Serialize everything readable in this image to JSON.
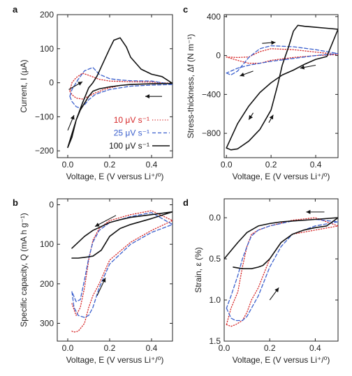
{
  "colors": {
    "s10": "#d62728",
    "s25": "#3a5fcd",
    "s100": "#111111"
  },
  "legend": [
    {
      "label": "10 μV s⁻¹",
      "color": "#d62728",
      "style": "dotted"
    },
    {
      "label": "25 μV s⁻¹",
      "color": "#3a5fcd",
      "style": "dashed"
    },
    {
      "label": "100 μV s⁻¹",
      "color": "#111111",
      "style": "solid"
    }
  ],
  "chart_data": [
    {
      "id": "a",
      "panel_label": "a",
      "type": "line",
      "xlabel": "Voltage, E (V versus Li⁺/⁰)",
      "ylabel": "Current, I (μA)",
      "xlim": [
        -0.05,
        0.5
      ],
      "ylim": [
        -220,
        200
      ],
      "xticks": [
        0.0,
        0.2,
        0.4
      ],
      "xtick_labels": [
        "0.0",
        "0.2",
        "0.4"
      ],
      "yticks": [
        200,
        100,
        0,
        -100,
        -200
      ],
      "ytick_labels": [
        "200",
        "100",
        "0",
        "−100",
        "−200"
      ],
      "grid": false,
      "legend_position": "bottom-right",
      "series": [
        {
          "name": "10 μV s⁻¹",
          "style": "dotted",
          "color": "#d62728",
          "x": [
            0.01,
            0.02,
            0.04,
            0.07,
            0.1,
            0.13,
            0.15,
            0.17,
            0.2,
            0.25,
            0.3,
            0.4,
            0.5,
            0.4,
            0.3,
            0.2,
            0.15,
            0.1,
            0.07,
            0.04,
            0.02,
            0.01
          ],
          "y": [
            -25,
            -35,
            -45,
            -48,
            -40,
            -30,
            -26,
            -20,
            -15,
            -8,
            -5,
            -3,
            -2,
            2,
            3,
            5,
            10,
            22,
            28,
            15,
            0,
            -25
          ]
        },
        {
          "name": "25 μV s⁻¹",
          "style": "dashed",
          "color": "#3a5fcd",
          "x": [
            0.01,
            0.02,
            0.04,
            0.06,
            0.08,
            0.1,
            0.13,
            0.15,
            0.17,
            0.2,
            0.25,
            0.3,
            0.4,
            0.5,
            0.4,
            0.3,
            0.25,
            0.2,
            0.15,
            0.12,
            0.08,
            0.05,
            0.02,
            0.01
          ],
          "y": [
            -40,
            -55,
            -70,
            -75,
            -65,
            -50,
            -35,
            -30,
            -26,
            -20,
            -15,
            -10,
            -7,
            -5,
            5,
            6,
            8,
            12,
            25,
            45,
            35,
            10,
            -20,
            -40
          ]
        },
        {
          "name": "100 μV s⁻¹",
          "style": "solid",
          "color": "#111111",
          "x": [
            0.0,
            0.02,
            0.04,
            0.06,
            0.08,
            0.1,
            0.12,
            0.15,
            0.2,
            0.25,
            0.3,
            0.4,
            0.5,
            0.45,
            0.4,
            0.35,
            0.3,
            0.28,
            0.25,
            0.22,
            0.2,
            0.17,
            0.14,
            0.12,
            0.1,
            0.07,
            0.04,
            0.02,
            0.0
          ],
          "y": [
            -190,
            -150,
            -110,
            -80,
            -60,
            -40,
            -25,
            -18,
            -12,
            -8,
            -5,
            -3,
            -2,
            18,
            25,
            40,
            75,
            105,
            132,
            125,
            100,
            60,
            20,
            0,
            -15,
            -60,
            -110,
            -160,
            -190
          ]
        }
      ],
      "annotations": [
        {
          "type": "arrow",
          "x1": 0.005,
          "y1": -20,
          "x2": 0.07,
          "y2": 3,
          "note": "upper-left, rightward"
        },
        {
          "type": "arrow",
          "x1": 0.45,
          "y1": -40,
          "x2": 0.37,
          "y2": -40,
          "note": "right, leftward"
        },
        {
          "type": "arrow",
          "x1": 0.0,
          "y1": -140,
          "x2": 0.03,
          "y2": -95,
          "note": "lower-left, upward"
        }
      ]
    },
    {
      "id": "b",
      "panel_label": "b",
      "type": "line",
      "xlabel": "Voltage, E (V versus Li⁺/⁰)",
      "ylabel": "Specific capacity, Q (mA h g⁻¹)",
      "xlim": [
        -0.05,
        0.5
      ],
      "ylim": [
        345,
        -15
      ],
      "y_inverted": true,
      "xticks": [
        0.0,
        0.2,
        0.4
      ],
      "xtick_labels": [
        "0.0",
        "0.2",
        "0.4"
      ],
      "yticks": [
        0,
        100,
        200,
        300
      ],
      "ytick_labels": [
        "0",
        "100",
        "200",
        "300"
      ],
      "grid": false,
      "series": [
        {
          "name": "10 μV s⁻¹",
          "style": "dotted",
          "color": "#d62728",
          "x": [
            0.02,
            0.03,
            0.05,
            0.08,
            0.1,
            0.12,
            0.15,
            0.2,
            0.3,
            0.4,
            0.5,
            0.4,
            0.3,
            0.2,
            0.15,
            0.12,
            0.1,
            0.08,
            0.06,
            0.04,
            0.02
          ],
          "y": [
            320,
            322,
            320,
            300,
            260,
            230,
            200,
            140,
            95,
            65,
            40,
            15,
            25,
            40,
            60,
            90,
            140,
            210,
            260,
            280,
            250
          ]
        },
        {
          "name": "25 μV s⁻¹",
          "style": "dashed",
          "color": "#3a5fcd",
          "x": [
            0.02,
            0.03,
            0.05,
            0.08,
            0.1,
            0.12,
            0.15,
            0.2,
            0.3,
            0.4,
            0.5,
            0.4,
            0.3,
            0.2,
            0.15,
            0.12,
            0.1,
            0.08,
            0.06,
            0.04,
            0.02
          ],
          "y": [
            220,
            260,
            280,
            285,
            280,
            260,
            210,
            150,
            100,
            70,
            50,
            20,
            30,
            45,
            65,
            95,
            135,
            190,
            240,
            245,
            220
          ]
        },
        {
          "name": "100 μV s⁻¹",
          "style": "solid",
          "color": "#111111",
          "x": [
            0.02,
            0.05,
            0.08,
            0.12,
            0.16,
            0.2,
            0.25,
            0.3,
            0.4,
            0.5,
            0.4,
            0.3,
            0.25,
            0.2,
            0.16,
            0.12,
            0.08,
            0.05,
            0.02
          ],
          "y": [
            110,
            95,
            80,
            65,
            55,
            45,
            38,
            32,
            25,
            18,
            35,
            50,
            60,
            80,
            115,
            130,
            133,
            135,
            135
          ]
        }
      ],
      "annotations": [
        {
          "type": "arrow",
          "x1": 0.23,
          "y1": 27,
          "x2": 0.13,
          "y2": 55,
          "note": "upper, leftward"
        },
        {
          "type": "arrow",
          "x1": 0.14,
          "y1": 230,
          "x2": 0.18,
          "y2": 185,
          "note": "lower, upward"
        }
      ]
    },
    {
      "id": "c",
      "panel_label": "c",
      "type": "line",
      "xlabel": "Voltage, E (V versus Li⁺/⁰)",
      "ylabel": "Stress-thickness, Δf (N m⁻¹)",
      "xlim": [
        -0.01,
        0.5
      ],
      "ylim": [
        -1050,
        420
      ],
      "xticks": [
        0.0,
        0.2,
        0.4
      ],
      "xtick_labels": [
        "0.0",
        "0.2",
        "0.4"
      ],
      "yticks": [
        400,
        0,
        -400,
        -800
      ],
      "ytick_labels": [
        "400",
        "0",
        "−400",
        "−800"
      ],
      "grid": false,
      "series": [
        {
          "name": "10 μV s⁻¹",
          "style": "dotted",
          "color": "#d62728",
          "x": [
            0.0,
            0.05,
            0.1,
            0.15,
            0.2,
            0.3,
            0.4,
            0.5,
            0.4,
            0.3,
            0.2,
            0.15,
            0.1,
            0.05,
            0.0
          ],
          "y": [
            -15,
            -20,
            -15,
            40,
            70,
            60,
            35,
            10,
            0,
            -20,
            -50,
            -80,
            -80,
            -50,
            -15
          ]
        },
        {
          "name": "25 μV s⁻¹",
          "style": "dashed",
          "color": "#3a5fcd",
          "x": [
            0.0,
            0.02,
            0.05,
            0.1,
            0.15,
            0.2,
            0.3,
            0.4,
            0.5,
            0.4,
            0.3,
            0.2,
            0.15,
            0.1,
            0.05,
            0.0
          ],
          "y": [
            -180,
            -200,
            -160,
            -20,
            70,
            100,
            90,
            60,
            20,
            0,
            -30,
            -60,
            -80,
            -100,
            -130,
            -180
          ]
        },
        {
          "name": "100 μV s⁻¹",
          "style": "solid",
          "color": "#111111",
          "x": [
            0.0,
            0.02,
            0.05,
            0.1,
            0.15,
            0.2,
            0.23,
            0.25,
            0.28,
            0.3,
            0.32,
            0.35,
            0.4,
            0.45,
            0.5,
            0.45,
            0.4,
            0.35,
            0.3,
            0.25,
            0.2,
            0.15,
            0.1,
            0.05,
            0.02,
            0.0
          ],
          "y": [
            -950,
            -970,
            -960,
            -880,
            -760,
            -560,
            -300,
            -100,
            100,
            250,
            310,
            300,
            290,
            280,
            270,
            -10,
            -40,
            -90,
            -150,
            -200,
            -280,
            -380,
            -520,
            -700,
            -850,
            -950
          ]
        }
      ],
      "annotations": [
        {
          "type": "arrow",
          "x1": 0.16,
          "y1": 125,
          "x2": 0.22,
          "y2": 135,
          "note": "top, rightward"
        },
        {
          "type": "arrow",
          "x1": 0.4,
          "y1": -100,
          "x2": 0.33,
          "y2": -130,
          "note": "right, leftward"
        },
        {
          "type": "arrow",
          "x1": 0.12,
          "y1": -160,
          "x2": 0.06,
          "y2": -210,
          "note": "upper-left, leftward"
        },
        {
          "type": "arrow",
          "x1": 0.12,
          "y1": -590,
          "x2": 0.1,
          "y2": -660,
          "note": "left, downward"
        },
        {
          "type": "arrow",
          "x1": 0.19,
          "y1": -690,
          "x2": 0.21,
          "y2": -610,
          "note": "center, upward"
        }
      ]
    },
    {
      "id": "d",
      "panel_label": "d",
      "type": "line",
      "xlabel": "Voltage, E (V versus Li⁺/⁰)",
      "ylabel": "Strain, ε (%)",
      "xlim": [
        0.0,
        0.5
      ],
      "ylim": [
        1.5,
        -0.23
      ],
      "y_inverted": true,
      "xticks": [
        0.0,
        0.2,
        0.4
      ],
      "xtick_labels": [
        "0.0",
        "0.2",
        "0.4"
      ],
      "yticks": [
        0.0,
        0.5,
        1.0,
        1.5
      ],
      "ytick_labels": [
        "0.0",
        "0.5",
        "1.0",
        "1.5"
      ],
      "grid": false,
      "series": [
        {
          "name": "10 μV s⁻¹",
          "style": "dotted",
          "color": "#d62728",
          "x": [
            0.01,
            0.03,
            0.05,
            0.08,
            0.1,
            0.12,
            0.15,
            0.2,
            0.25,
            0.3,
            0.4,
            0.5,
            0.4,
            0.3,
            0.2,
            0.15,
            0.12,
            0.1,
            0.08,
            0.06,
            0.03,
            0.01
          ],
          "y": [
            1.3,
            1.32,
            1.3,
            1.25,
            1.15,
            1.0,
            0.85,
            0.5,
            0.3,
            0.2,
            0.15,
            0.1,
            0.0,
            0.03,
            0.1,
            0.15,
            0.2,
            0.35,
            0.6,
            0.9,
            1.1,
            1.3
          ]
        },
        {
          "name": "25 μV s⁻¹",
          "style": "dashed",
          "color": "#3a5fcd",
          "x": [
            0.01,
            0.03,
            0.05,
            0.08,
            0.1,
            0.12,
            0.15,
            0.2,
            0.25,
            0.3,
            0.4,
            0.5,
            0.4,
            0.3,
            0.2,
            0.15,
            0.12,
            0.1,
            0.08,
            0.06,
            0.03,
            0.01
          ],
          "y": [
            1.1,
            1.22,
            1.25,
            1.25,
            1.2,
            1.1,
            0.95,
            0.6,
            0.35,
            0.2,
            0.1,
            0.05,
            0.02,
            0.04,
            0.1,
            0.15,
            0.22,
            0.35,
            0.5,
            0.7,
            0.95,
            1.1
          ]
        },
        {
          "name": "100 μV s⁻¹",
          "style": "solid",
          "color": "#111111",
          "x": [
            0.0,
            0.03,
            0.06,
            0.1,
            0.15,
            0.2,
            0.25,
            0.3,
            0.4,
            0.5,
            0.45,
            0.4,
            0.35,
            0.3,
            0.25,
            0.2,
            0.17,
            0.15,
            0.12,
            0.08,
            0.04
          ],
          "y": [
            0.5,
            0.4,
            0.3,
            0.18,
            0.1,
            0.07,
            0.05,
            0.04,
            0.02,
            0.0,
            0.1,
            0.12,
            0.15,
            0.2,
            0.3,
            0.5,
            0.58,
            0.6,
            0.62,
            0.62,
            0.6
          ]
        }
      ],
      "annotations": [
        {
          "type": "arrow",
          "x1": 0.44,
          "y1": -0.07,
          "x2": 0.36,
          "y2": -0.07,
          "note": "top, leftward"
        },
        {
          "type": "arrow",
          "x1": 0.2,
          "y1": 1.0,
          "x2": 0.24,
          "y2": 0.85,
          "note": "lower, upward"
        }
      ]
    }
  ]
}
